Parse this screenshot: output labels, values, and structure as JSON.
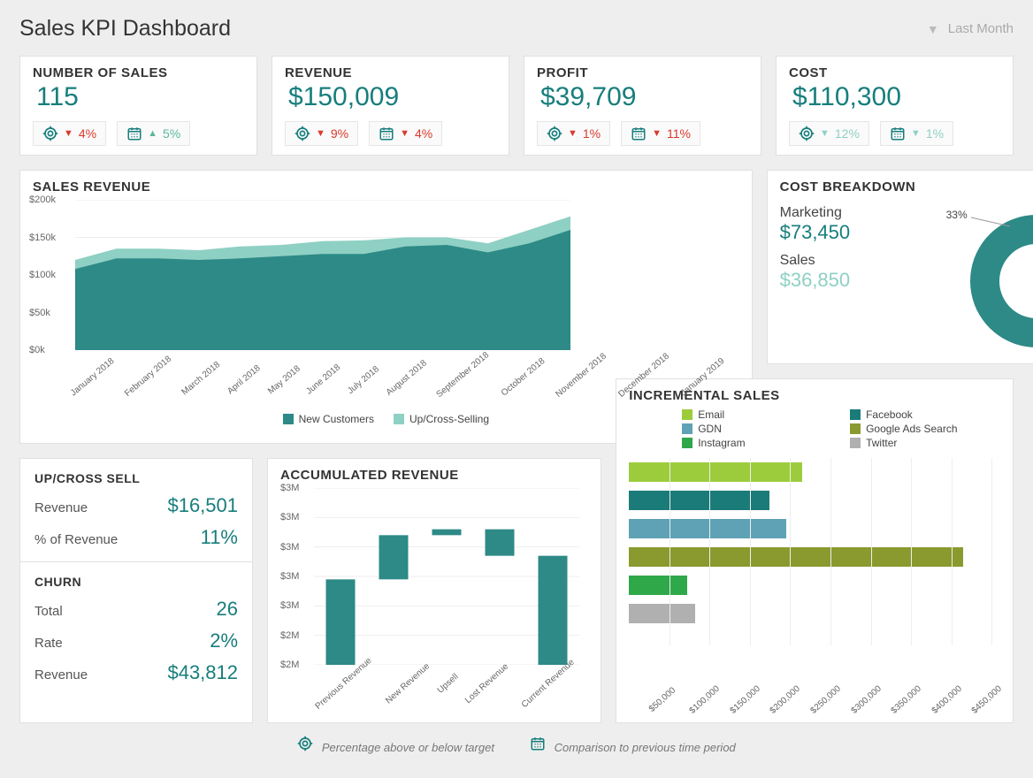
{
  "colors": {
    "teal": "#2d8a87",
    "teal_dark": "#177e7c",
    "teal_light": "#8fd0c4",
    "teal_lighter": "#b0ddd3",
    "red": "#d93a2b",
    "grid": "#eeeeee",
    "text": "#333333",
    "text_muted": "#666666",
    "border": "#e0e0e0",
    "bg": "#eeeeee",
    "card": "#ffffff"
  },
  "header": {
    "title": "Sales KPI Dashboard",
    "period_label": "Last Month"
  },
  "kpis": [
    {
      "title": "NUMBER OF SALES",
      "value": "115",
      "target": {
        "dir": "down",
        "pct": "4%"
      },
      "period": {
        "dir": "up",
        "pct": "5%"
      }
    },
    {
      "title": "REVENUE",
      "value": "$150,009",
      "target": {
        "dir": "down",
        "pct": "9%"
      },
      "period": {
        "dir": "down",
        "pct": "4%"
      }
    },
    {
      "title": "PROFIT",
      "value": "$39,709",
      "target": {
        "dir": "down",
        "pct": "1%"
      },
      "period": {
        "dir": "down",
        "pct": "11%"
      }
    },
    {
      "title": "COST",
      "value": "$110,300",
      "target": {
        "dir": "down_light",
        "pct": "12%"
      },
      "period": {
        "dir": "down_light",
        "pct": "1%"
      }
    }
  ],
  "sales_revenue": {
    "title": "SALES REVENUE",
    "type": "area",
    "y_ticks": [
      "$0k",
      "$50k",
      "$100k",
      "$150k",
      "$200k"
    ],
    "ylim": [
      0,
      200
    ],
    "categories": [
      "January 2018",
      "February 2018",
      "March 2018",
      "April 2018",
      "May 2018",
      "June 2018",
      "July 2018",
      "August 2018",
      "September 2018",
      "October 2018",
      "November 2018",
      "December 2018",
      "January 2019"
    ],
    "series": [
      {
        "name": "New Customers",
        "color": "#2d8a87",
        "values": [
          108,
          122,
          122,
          120,
          122,
          125,
          128,
          128,
          138,
          140,
          130,
          142,
          160
        ]
      },
      {
        "name": "Up/Cross-Selling",
        "color": "#8fd0c4",
        "values": [
          120,
          135,
          135,
          133,
          138,
          140,
          145,
          146,
          150,
          150,
          142,
          160,
          178
        ]
      }
    ]
  },
  "cost_breakdown": {
    "title": "COST BREAKDOWN",
    "items": [
      {
        "label": "Marketing",
        "value": "$73,450",
        "pct": 67,
        "color": "#2d8a87",
        "value_class": "dark"
      },
      {
        "label": "Sales",
        "value": "$36,850",
        "pct": 33,
        "color": "#8fd0c4",
        "value_class": "light"
      }
    ]
  },
  "upcross": {
    "title": "UP/CROSS SELL",
    "rows": [
      {
        "lbl": "Revenue",
        "val": "$16,501"
      },
      {
        "lbl": "% of Revenue",
        "val": "11%"
      }
    ]
  },
  "churn": {
    "title": "CHURN",
    "rows": [
      {
        "lbl": "Total",
        "val": "26"
      },
      {
        "lbl": "Rate",
        "val": "2%"
      },
      {
        "lbl": "Revenue",
        "val": "$43,812"
      }
    ]
  },
  "acc_revenue": {
    "title": "ACCUMULATED REVENUE",
    "type": "waterfall",
    "y_ticks": [
      "$2M",
      "$2M",
      "$3M",
      "$3M",
      "$3M",
      "$3M",
      "$3M"
    ],
    "ylim": [
      2.0,
      3.2
    ],
    "categories": [
      "Previous Revenue",
      "New Revenue",
      "Upsell",
      "Lost Revenue",
      "Current Revenue"
    ],
    "bars": [
      {
        "from": 2.0,
        "to": 2.58,
        "color": "#2d8a87"
      },
      {
        "from": 2.58,
        "to": 2.88,
        "color": "#2d8a87"
      },
      {
        "from": 2.88,
        "to": 2.92,
        "color": "#2d8a87"
      },
      {
        "from": 2.74,
        "to": 2.92,
        "color": "#2d8a87"
      },
      {
        "from": 2.0,
        "to": 2.74,
        "color": "#2d8a87"
      }
    ],
    "bar_width": 0.55
  },
  "incremental_sales": {
    "title": "INCREMENTAL SALES",
    "type": "hbar",
    "xlim": [
      0,
      450000
    ],
    "x_ticks": [
      "$50,000",
      "$100,000",
      "$150,000",
      "$200,000",
      "$250,000",
      "$300,000",
      "$350,000",
      "$400,000",
      "$450,000"
    ],
    "series": [
      {
        "name": "Email",
        "color": "#9ccc3c",
        "value": 210000
      },
      {
        "name": "Facebook",
        "color": "#1b7b78",
        "value": 170000
      },
      {
        "name": "GDN",
        "color": "#5fa2b6",
        "value": 190000
      },
      {
        "name": "Google Ads Search",
        "color": "#8a9a2e",
        "value": 405000
      },
      {
        "name": "Instagram",
        "color": "#2fa84a",
        "value": 70000
      },
      {
        "name": "Twitter",
        "color": "#b0b0b0",
        "value": 80000
      }
    ]
  },
  "footer": {
    "target_text": "Percentage above or below target",
    "period_text": "Comparison to previous time period"
  }
}
